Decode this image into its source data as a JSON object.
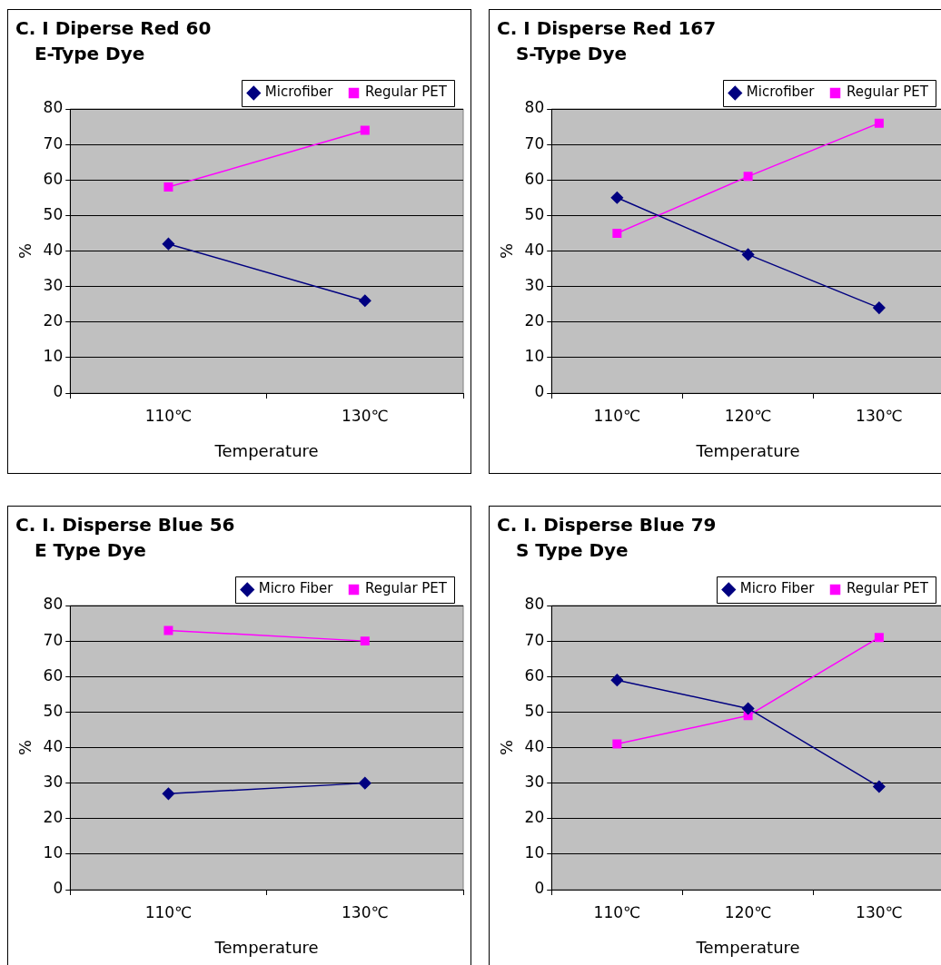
{
  "chart_data": [
    {
      "type": "line",
      "title": "C. I Diperse Red 60\n   E-Type Dye",
      "xlabel": "Temperature",
      "ylabel": "%",
      "categories": [
        "110℃",
        "130℃"
      ],
      "ylim": [
        0,
        80
      ],
      "yticks": [
        0,
        10,
        20,
        30,
        40,
        50,
        60,
        70,
        80
      ],
      "grid": "y",
      "legend": "top right",
      "line_style": "solid",
      "series": [
        {
          "name": "Microfiber",
          "color": "#000080",
          "marker": "diamond",
          "values": [
            42,
            26
          ]
        },
        {
          "name": "Regular PET",
          "color": "#ff00ff",
          "marker": "square",
          "values": [
            58,
            74
          ]
        }
      ]
    },
    {
      "type": "line",
      "title": "C. I Disperse Red 167\n   S-Type Dye",
      "xlabel": "Temperature",
      "ylabel": "%",
      "categories": [
        "110℃",
        "120℃",
        "130℃"
      ],
      "ylim": [
        0,
        80
      ],
      "yticks": [
        0,
        10,
        20,
        30,
        40,
        50,
        60,
        70,
        80
      ],
      "grid": "y",
      "legend": "top right",
      "line_style": "solid",
      "series": [
        {
          "name": "Microfiber",
          "color": "#000080",
          "marker": "diamond",
          "values": [
            55,
            39,
            24
          ]
        },
        {
          "name": "Regular PET",
          "color": "#ff00ff",
          "marker": "square",
          "values": [
            45,
            61,
            76
          ]
        }
      ]
    },
    {
      "type": "line",
      "title": "C. I. Disperse Blue 56\n   E Type Dye",
      "xlabel": "Temperature",
      "ylabel": "%",
      "categories": [
        "110℃",
        "130℃"
      ],
      "ylim": [
        0,
        80
      ],
      "yticks": [
        0,
        10,
        20,
        30,
        40,
        50,
        60,
        70,
        80
      ],
      "grid": "y",
      "legend": "top right",
      "line_style": "solid",
      "series": [
        {
          "name": "Micro Fiber",
          "color": "#000080",
          "marker": "diamond",
          "values": [
            27,
            30
          ]
        },
        {
          "name": "Regular PET",
          "color": "#ff00ff",
          "marker": "square",
          "values": [
            73,
            70
          ]
        }
      ]
    },
    {
      "type": "line",
      "title": "C. I. Disperse Blue 79\n   S Type Dye",
      "xlabel": "Temperature",
      "ylabel": "%",
      "categories": [
        "110℃",
        "120℃",
        "130℃"
      ],
      "ylim": [
        0,
        80
      ],
      "yticks": [
        0,
        10,
        20,
        30,
        40,
        50,
        60,
        70,
        80
      ],
      "grid": "y",
      "legend": "top right",
      "line_style": "solid",
      "series": [
        {
          "name": "Micro Fiber",
          "color": "#000080",
          "marker": "diamond",
          "values": [
            59,
            51,
            29
          ]
        },
        {
          "name": "Regular PET",
          "color": "#ff00ff",
          "marker": "square",
          "values": [
            41,
            49,
            71
          ]
        }
      ]
    }
  ]
}
